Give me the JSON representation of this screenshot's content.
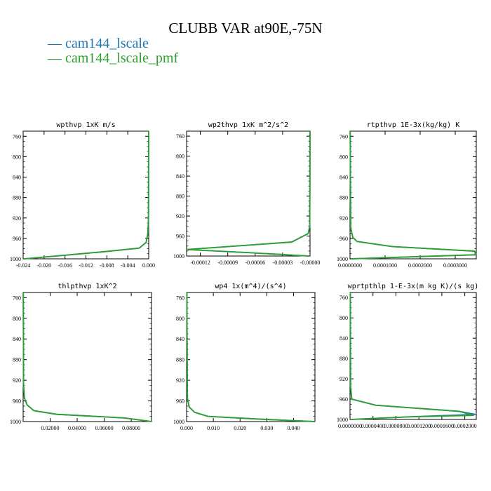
{
  "title": "CLUBB VAR at90E,-75N",
  "legend": [
    {
      "label": "cam144_lscale",
      "color": "#1f77b4"
    },
    {
      "label": "cam144_lscale_pmf",
      "color": "#2ca02c"
    }
  ],
  "chart_data": [
    {
      "type": "line",
      "title": "wpthvp  1xK m/s",
      "xlim": [
        -0.024,
        0.0
      ],
      "ylim": [
        1000,
        750
      ],
      "xticks": [
        "-0.024",
        "-0.020",
        "-0.016",
        "-0.012",
        "-0.008",
        "-0.004",
        "0.000"
      ],
      "xtick_values": [
        -0.024,
        -0.02,
        -0.016,
        -0.012,
        -0.008,
        -0.004,
        0.0
      ],
      "yticks": [
        "760",
        "800",
        "840",
        "880",
        "920",
        "960",
        "1000"
      ],
      "ytick_values": [
        760,
        800,
        840,
        880,
        920,
        960,
        1000
      ],
      "series": [
        {
          "name": "cam144_lscale",
          "x": [
            -0.0238,
            -0.016,
            -0.0085,
            -0.0018,
            -0.0005,
            -0.00015,
            -4e-05,
            -1e-05
          ],
          "y": [
            1000,
            993,
            986,
            979,
            968,
            950,
            920,
            750
          ]
        },
        {
          "name": "cam144_lscale_pmf",
          "x": [
            -0.0238,
            -0.016,
            -0.0085,
            -0.0018,
            -0.0005,
            -0.00015,
            -4e-05,
            -1e-05
          ],
          "y": [
            1000,
            993,
            986,
            979,
            968,
            950,
            920,
            750
          ]
        }
      ]
    },
    {
      "type": "line",
      "title": "wp2thvp  1xK m^2/s^2",
      "xlim": [
        -0.000135,
        0.0
      ],
      "ylim": [
        1000,
        750
      ],
      "xticks": [
        "-0.00012",
        "-0.00009",
        "-0.00006",
        "-0.00003",
        "-0.00000"
      ],
      "xtick_values": [
        -0.00012,
        -9e-05,
        -6e-05,
        -3e-05,
        0.0
      ],
      "yticks": [
        "760",
        "800",
        "840",
        "880",
        "920",
        "960",
        "1000"
      ],
      "ytick_values": [
        760,
        800,
        840,
        880,
        920,
        960,
        1000
      ],
      "series": [
        {
          "name": "cam144_lscale",
          "x": [
            -1.5e-06,
            -7e-05,
            -0.000135,
            -2e-05,
            -2e-06,
            -3e-07,
            0.0
          ],
          "y": [
            1000,
            993,
            987,
            972,
            955,
            940,
            750
          ]
        },
        {
          "name": "cam144_lscale_pmf",
          "x": [
            -1.5e-06,
            -7e-05,
            -0.000135,
            -2e-05,
            -2e-06,
            -3e-07,
            0.0
          ],
          "y": [
            1000,
            993,
            987,
            972,
            955,
            940,
            750
          ]
        }
      ]
    },
    {
      "type": "line",
      "title": "rtpthvp  1E-3x(kg/kg) K",
      "xlim": [
        0.0,
        0.00036
      ],
      "ylim": [
        1000,
        750
      ],
      "xticks": [
        "0.0000000",
        "0.0001000",
        "0.0002000",
        "0.0003000"
      ],
      "xtick_values": [
        0.0,
        0.0001,
        0.0002,
        0.0003
      ],
      "yticks": [
        "760",
        "800",
        "840",
        "880",
        "920",
        "960",
        "1000"
      ],
      "ytick_values": [
        760,
        800,
        840,
        880,
        920,
        960,
        1000
      ],
      "series": [
        {
          "name": "cam144_lscale",
          "x": [
            1e-06,
            0.00036,
            0.000355,
            0.00012,
            2e-05,
            8e-06,
            2e-06,
            5e-07
          ],
          "y": [
            1000,
            992,
            985,
            976,
            966,
            958,
            940,
            750
          ]
        },
        {
          "name": "cam144_lscale_pmf",
          "x": [
            1e-06,
            0.00036,
            0.000355,
            0.00012,
            2e-05,
            8e-06,
            2e-06,
            5e-07
          ],
          "y": [
            1000,
            992,
            985,
            976,
            966,
            958,
            940,
            750
          ]
        }
      ]
    },
    {
      "type": "line",
      "title": "thlpthvp  1xK^2",
      "xlim": [
        0.0,
        0.095
      ],
      "ylim": [
        1000,
        750
      ],
      "xticks": [
        "0.02000",
        "0.04000",
        "0.06000",
        "0.08000"
      ],
      "xtick_values": [
        0.02,
        0.04,
        0.06,
        0.08
      ],
      "yticks": [
        "760",
        "800",
        "840",
        "880",
        "920",
        "960",
        "1000"
      ],
      "ytick_values": [
        760,
        800,
        840,
        880,
        920,
        960,
        1000
      ],
      "series": [
        {
          "name": "cam144_lscale",
          "x": [
            0.095,
            0.075,
            0.025,
            0.008,
            0.003,
            0.001,
            0.0003,
            0.0001
          ],
          "y": [
            1000,
            993,
            986,
            979,
            968,
            955,
            930,
            750
          ]
        },
        {
          "name": "cam144_lscale_pmf",
          "x": [
            0.095,
            0.075,
            0.025,
            0.008,
            0.003,
            0.001,
            0.0003,
            0.0001
          ],
          "y": [
            1000,
            993,
            986,
            979,
            968,
            955,
            930,
            750
          ]
        }
      ]
    },
    {
      "type": "line",
      "title": "wp4  1x(m^4)/(s^4)",
      "xlim": [
        0.0,
        0.048
      ],
      "ylim": [
        1000,
        750
      ],
      "xticks": [
        "0.000",
        "0.010",
        "0.020",
        "0.030",
        "0.040"
      ],
      "xtick_values": [
        0.0,
        0.01,
        0.02,
        0.03,
        0.04
      ],
      "yticks": [
        "760",
        "800",
        "840",
        "880",
        "920",
        "960",
        "1000"
      ],
      "ytick_values": [
        760,
        800,
        840,
        880,
        920,
        960,
        1000
      ],
      "series": [
        {
          "name": "cam144_lscale",
          "x": [
            0.048,
            0.03,
            0.008,
            0.003,
            0.001,
            0.0003,
            0.0001
          ],
          "y": [
            1000,
            996,
            990,
            982,
            972,
            955,
            750
          ]
        },
        {
          "name": "cam144_lscale_pmf",
          "x": [
            0.048,
            0.03,
            0.008,
            0.003,
            0.001,
            0.0003,
            0.0001
          ],
          "y": [
            1000,
            996,
            990,
            982,
            972,
            955,
            750
          ]
        }
      ]
    },
    {
      "type": "line",
      "title": "wprtpthlp  1-E-3x(m kg K)/(s kg)",
      "xlim": [
        0.0,
        0.00022
      ],
      "ylim": [
        1000,
        750
      ],
      "xticks": [
        "0.0000000",
        "0.0000400",
        "0.0000800",
        "0.0001200",
        "0.0001600",
        "0.0002000"
      ],
      "xtick_values": [
        0.0,
        4e-05,
        8e-05,
        0.00012,
        0.00016,
        0.0002
      ],
      "yticks": [
        "760",
        "800",
        "840",
        "880",
        "920",
        "960",
        "1000"
      ],
      "ytick_values": [
        760,
        800,
        840,
        880,
        920,
        960,
        1000
      ],
      "series": [
        {
          "name": "cam144_lscale",
          "x": [
            2e-06,
            0.0001,
            0.000218,
            0.00019,
            4.5e-05,
            3e-06,
            1e-06,
            5e-07
          ],
          "y": [
            1000,
            995,
            990,
            984,
            972,
            960,
            935,
            750
          ]
        },
        {
          "name": "cam144_lscale_pmf",
          "x": [
            2e-06,
            0.0001,
            0.000215,
            0.00019,
            4.5e-05,
            3e-06,
            1e-06,
            5e-07
          ],
          "y": [
            1000,
            995,
            992,
            984,
            972,
            960,
            935,
            750
          ]
        }
      ]
    }
  ]
}
